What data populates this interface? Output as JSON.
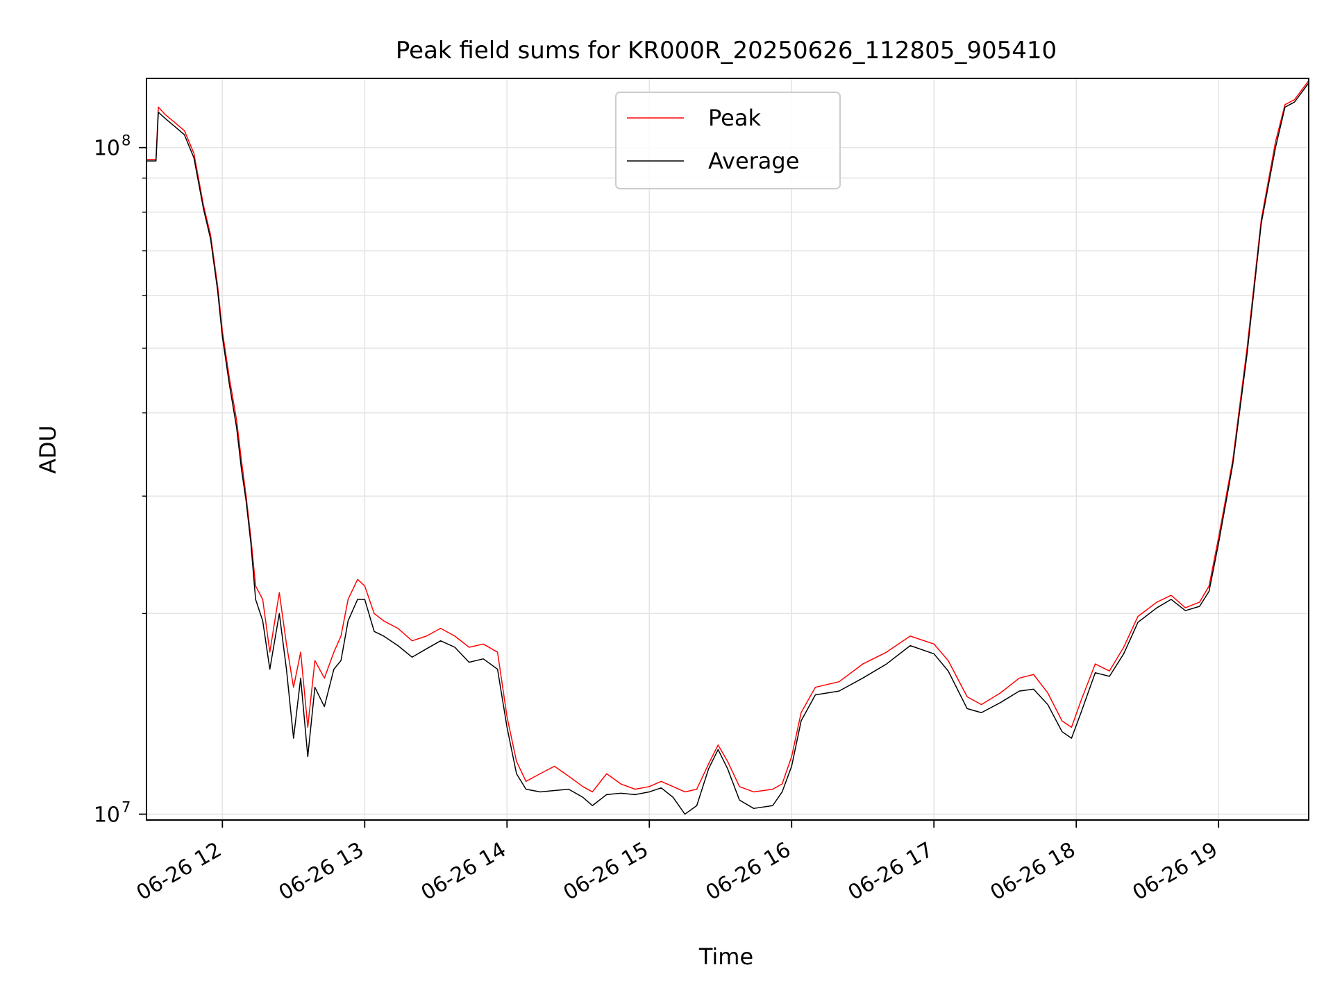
{
  "chart_data": {
    "type": "line",
    "title": "Peak field sums for KR000R_20250626_112805_905410",
    "xlabel": "Time",
    "ylabel": "ADU",
    "x_scale": "time",
    "y_scale": "log",
    "xlim": [
      "2025-06-26 11:28",
      "2025-06-26 19:38"
    ],
    "ylim": [
      9800000,
      127000000
    ],
    "x_ticks": [
      {
        "t": "2025-06-26 12:00",
        "label": "06-26 12"
      },
      {
        "t": "2025-06-26 13:00",
        "label": "06-26 13"
      },
      {
        "t": "2025-06-26 14:00",
        "label": "06-26 14"
      },
      {
        "t": "2025-06-26 15:00",
        "label": "06-26 15"
      },
      {
        "t": "2025-06-26 16:00",
        "label": "06-26 16"
      },
      {
        "t": "2025-06-26 17:00",
        "label": "06-26 17"
      },
      {
        "t": "2025-06-26 18:00",
        "label": "06-26 18"
      },
      {
        "t": "2025-06-26 19:00",
        "label": "06-26 19"
      }
    ],
    "y_major_ticks": [
      {
        "value": 10000000,
        "base": "10",
        "exp": "7"
      },
      {
        "value": 100000000,
        "base": "10",
        "exp": "8"
      }
    ],
    "y_minor_ticks": [
      20000000,
      30000000,
      40000000,
      50000000,
      60000000,
      70000000,
      80000000,
      90000000
    ],
    "grid": true,
    "legend": {
      "position": "upper-center",
      "entries": [
        {
          "name": "Peak",
          "color": "#ff0000"
        },
        {
          "name": "Average",
          "color": "#000000"
        }
      ]
    },
    "series": [
      {
        "name": "Peak",
        "color": "#ff0000",
        "points": [
          [
            "2025-06-26 11:28",
            96000000
          ],
          [
            "2025-06-26 11:32",
            96000000
          ],
          [
            "2025-06-26 11:33",
            115000000
          ],
          [
            "2025-06-26 11:36",
            112000000
          ],
          [
            "2025-06-26 11:40",
            109000000
          ],
          [
            "2025-06-26 11:44",
            106000000
          ],
          [
            "2025-06-26 11:48",
            98000000
          ],
          [
            "2025-06-26 11:52",
            82000000
          ],
          [
            "2025-06-26 11:55",
            74000000
          ],
          [
            "2025-06-26 11:58",
            62000000
          ],
          [
            "2025-06-26 12:00",
            53000000
          ],
          [
            "2025-06-26 12:03",
            45000000
          ],
          [
            "2025-06-26 12:06",
            39000000
          ],
          [
            "2025-06-26 12:08",
            34000000
          ],
          [
            "2025-06-26 12:10",
            30000000
          ],
          [
            "2025-06-26 12:12",
            26000000
          ],
          [
            "2025-06-26 12:14",
            22000000
          ],
          [
            "2025-06-26 12:17",
            21000000
          ],
          [
            "2025-06-26 12:20",
            17500000
          ],
          [
            "2025-06-26 12:24",
            21500000
          ],
          [
            "2025-06-26 12:27",
            18000000
          ],
          [
            "2025-06-26 12:30",
            15500000
          ],
          [
            "2025-06-26 12:33",
            17500000
          ],
          [
            "2025-06-26 12:36",
            13500000
          ],
          [
            "2025-06-26 12:39",
            17000000
          ],
          [
            "2025-06-26 12:43",
            16000000
          ],
          [
            "2025-06-26 12:47",
            17500000
          ],
          [
            "2025-06-26 12:50",
            18500000
          ],
          [
            "2025-06-26 12:53",
            21000000
          ],
          [
            "2025-06-26 12:57",
            22500000
          ],
          [
            "2025-06-26 13:00",
            22000000
          ],
          [
            "2025-06-26 13:04",
            20000000
          ],
          [
            "2025-06-26 13:08",
            19500000
          ],
          [
            "2025-06-26 13:14",
            19000000
          ],
          [
            "2025-06-26 13:20",
            18200000
          ],
          [
            "2025-06-26 13:26",
            18500000
          ],
          [
            "2025-06-26 13:32",
            19000000
          ],
          [
            "2025-06-26 13:38",
            18500000
          ],
          [
            "2025-06-26 13:44",
            17800000
          ],
          [
            "2025-06-26 13:50",
            18000000
          ],
          [
            "2025-06-26 13:56",
            17500000
          ],
          [
            "2025-06-26 14:00",
            14000000
          ],
          [
            "2025-06-26 14:04",
            12000000
          ],
          [
            "2025-06-26 14:08",
            11200000
          ],
          [
            "2025-06-26 14:14",
            11500000
          ],
          [
            "2025-06-26 14:20",
            11800000
          ],
          [
            "2025-06-26 14:26",
            11400000
          ],
          [
            "2025-06-26 14:32",
            11000000
          ],
          [
            "2025-06-26 14:36",
            10800000
          ],
          [
            "2025-06-26 14:42",
            11500000
          ],
          [
            "2025-06-26 14:48",
            11100000
          ],
          [
            "2025-06-26 14:54",
            10900000
          ],
          [
            "2025-06-26 15:00",
            11000000
          ],
          [
            "2025-06-26 15:05",
            11200000
          ],
          [
            "2025-06-26 15:10",
            11000000
          ],
          [
            "2025-06-26 15:15",
            10800000
          ],
          [
            "2025-06-26 15:20",
            10900000
          ],
          [
            "2025-06-26 15:25",
            11900000
          ],
          [
            "2025-06-26 15:29",
            12700000
          ],
          [
            "2025-06-26 15:33",
            12000000
          ],
          [
            "2025-06-26 15:38",
            11000000
          ],
          [
            "2025-06-26 15:44",
            10800000
          ],
          [
            "2025-06-26 15:52",
            10900000
          ],
          [
            "2025-06-26 15:56",
            11100000
          ],
          [
            "2025-06-26 16:00",
            12200000
          ],
          [
            "2025-06-26 16:04",
            14200000
          ],
          [
            "2025-06-26 16:10",
            15500000
          ],
          [
            "2025-06-26 16:20",
            15800000
          ],
          [
            "2025-06-26 16:30",
            16800000
          ],
          [
            "2025-06-26 16:40",
            17500000
          ],
          [
            "2025-06-26 16:50",
            18500000
          ],
          [
            "2025-06-26 17:00",
            18000000
          ],
          [
            "2025-06-26 17:06",
            17000000
          ],
          [
            "2025-06-26 17:14",
            15000000
          ],
          [
            "2025-06-26 17:20",
            14600000
          ],
          [
            "2025-06-26 17:28",
            15200000
          ],
          [
            "2025-06-26 17:36",
            16000000
          ],
          [
            "2025-06-26 17:42",
            16200000
          ],
          [
            "2025-06-26 17:48",
            15200000
          ],
          [
            "2025-06-26 17:54",
            13800000
          ],
          [
            "2025-06-26 17:58",
            13500000
          ],
          [
            "2025-06-26 18:02",
            14800000
          ],
          [
            "2025-06-26 18:08",
            16800000
          ],
          [
            "2025-06-26 18:14",
            16400000
          ],
          [
            "2025-06-26 18:20",
            17800000
          ],
          [
            "2025-06-26 18:26",
            19800000
          ],
          [
            "2025-06-26 18:34",
            20800000
          ],
          [
            "2025-06-26 18:40",
            21300000
          ],
          [
            "2025-06-26 18:46",
            20400000
          ],
          [
            "2025-06-26 18:52",
            20800000
          ],
          [
            "2025-06-26 18:56",
            22000000
          ],
          [
            "2025-06-26 19:00",
            26000000
          ],
          [
            "2025-06-26 19:06",
            34000000
          ],
          [
            "2025-06-26 19:12",
            50000000
          ],
          [
            "2025-06-26 19:18",
            78000000
          ],
          [
            "2025-06-26 19:24",
            102000000
          ],
          [
            "2025-06-26 19:28",
            116000000
          ],
          [
            "2025-06-26 19:32",
            118000000
          ],
          [
            "2025-06-26 19:38",
            126000000
          ]
        ]
      },
      {
        "name": "Average",
        "color": "#000000",
        "points": [
          [
            "2025-06-26 11:28",
            95500000
          ],
          [
            "2025-06-26 11:32",
            95500000
          ],
          [
            "2025-06-26 11:33",
            113000000
          ],
          [
            "2025-06-26 11:36",
            110500000
          ],
          [
            "2025-06-26 11:40",
            107500000
          ],
          [
            "2025-06-26 11:44",
            104500000
          ],
          [
            "2025-06-26 11:48",
            96500000
          ],
          [
            "2025-06-26 11:52",
            81000000
          ],
          [
            "2025-06-26 11:55",
            73000000
          ],
          [
            "2025-06-26 11:58",
            61000000
          ],
          [
            "2025-06-26 12:00",
            52000000
          ],
          [
            "2025-06-26 12:03",
            44000000
          ],
          [
            "2025-06-26 12:06",
            38000000
          ],
          [
            "2025-06-26 12:08",
            33000000
          ],
          [
            "2025-06-26 12:10",
            29500000
          ],
          [
            "2025-06-26 12:12",
            25500000
          ],
          [
            "2025-06-26 12:14",
            21000000
          ],
          [
            "2025-06-26 12:17",
            19500000
          ],
          [
            "2025-06-26 12:20",
            16500000
          ],
          [
            "2025-06-26 12:24",
            20000000
          ],
          [
            "2025-06-26 12:27",
            16500000
          ],
          [
            "2025-06-26 12:30",
            13000000
          ],
          [
            "2025-06-26 12:33",
            16000000
          ],
          [
            "2025-06-26 12:36",
            12200000
          ],
          [
            "2025-06-26 12:39",
            15500000
          ],
          [
            "2025-06-26 12:43",
            14500000
          ],
          [
            "2025-06-26 12:47",
            16500000
          ],
          [
            "2025-06-26 12:50",
            17000000
          ],
          [
            "2025-06-26 12:53",
            19500000
          ],
          [
            "2025-06-26 12:57",
            21000000
          ],
          [
            "2025-06-26 13:00",
            21000000
          ],
          [
            "2025-06-26 13:04",
            18800000
          ],
          [
            "2025-06-26 13:08",
            18500000
          ],
          [
            "2025-06-26 13:14",
            17900000
          ],
          [
            "2025-06-26 13:20",
            17200000
          ],
          [
            "2025-06-26 13:26",
            17700000
          ],
          [
            "2025-06-26 13:32",
            18200000
          ],
          [
            "2025-06-26 13:38",
            17800000
          ],
          [
            "2025-06-26 13:44",
            16900000
          ],
          [
            "2025-06-26 13:50",
            17100000
          ],
          [
            "2025-06-26 13:56",
            16500000
          ],
          [
            "2025-06-26 14:00",
            13500000
          ],
          [
            "2025-06-26 14:04",
            11500000
          ],
          [
            "2025-06-26 14:08",
            10900000
          ],
          [
            "2025-06-26 14:14",
            10800000
          ],
          [
            "2025-06-26 14:20",
            10850000
          ],
          [
            "2025-06-26 14:26",
            10900000
          ],
          [
            "2025-06-26 14:32",
            10600000
          ],
          [
            "2025-06-26 14:36",
            10300000
          ],
          [
            "2025-06-26 14:42",
            10700000
          ],
          [
            "2025-06-26 14:48",
            10750000
          ],
          [
            "2025-06-26 14:54",
            10700000
          ],
          [
            "2025-06-26 15:00",
            10800000
          ],
          [
            "2025-06-26 15:05",
            10950000
          ],
          [
            "2025-06-26 15:10",
            10600000
          ],
          [
            "2025-06-26 15:15",
            10000000
          ],
          [
            "2025-06-26 15:20",
            10300000
          ],
          [
            "2025-06-26 15:25",
            11700000
          ],
          [
            "2025-06-26 15:29",
            12500000
          ],
          [
            "2025-06-26 15:33",
            11700000
          ],
          [
            "2025-06-26 15:38",
            10500000
          ],
          [
            "2025-06-26 15:44",
            10200000
          ],
          [
            "2025-06-26 15:52",
            10300000
          ],
          [
            "2025-06-26 15:56",
            10800000
          ],
          [
            "2025-06-26 16:00",
            11800000
          ],
          [
            "2025-06-26 16:04",
            13800000
          ],
          [
            "2025-06-26 16:10",
            15100000
          ],
          [
            "2025-06-26 16:20",
            15300000
          ],
          [
            "2025-06-26 16:30",
            16000000
          ],
          [
            "2025-06-26 16:40",
            16800000
          ],
          [
            "2025-06-26 16:50",
            17900000
          ],
          [
            "2025-06-26 17:00",
            17400000
          ],
          [
            "2025-06-26 17:06",
            16400000
          ],
          [
            "2025-06-26 17:14",
            14400000
          ],
          [
            "2025-06-26 17:20",
            14200000
          ],
          [
            "2025-06-26 17:28",
            14700000
          ],
          [
            "2025-06-26 17:36",
            15300000
          ],
          [
            "2025-06-26 17:42",
            15400000
          ],
          [
            "2025-06-26 17:48",
            14600000
          ],
          [
            "2025-06-26 17:54",
            13300000
          ],
          [
            "2025-06-26 17:58",
            13000000
          ],
          [
            "2025-06-26 18:02",
            14200000
          ],
          [
            "2025-06-26 18:08",
            16300000
          ],
          [
            "2025-06-26 18:14",
            16100000
          ],
          [
            "2025-06-26 18:20",
            17400000
          ],
          [
            "2025-06-26 18:26",
            19400000
          ],
          [
            "2025-06-26 18:34",
            20400000
          ],
          [
            "2025-06-26 18:40",
            21000000
          ],
          [
            "2025-06-26 18:46",
            20200000
          ],
          [
            "2025-06-26 18:52",
            20500000
          ],
          [
            "2025-06-26 18:56",
            21600000
          ],
          [
            "2025-06-26 19:00",
            25500000
          ],
          [
            "2025-06-26 19:06",
            33500000
          ],
          [
            "2025-06-26 19:12",
            49000000
          ],
          [
            "2025-06-26 19:18",
            77000000
          ],
          [
            "2025-06-26 19:24",
            100000000
          ],
          [
            "2025-06-26 19:28",
            115000000
          ],
          [
            "2025-06-26 19:32",
            117000000
          ],
          [
            "2025-06-26 19:38",
            125000000
          ]
        ]
      }
    ]
  }
}
